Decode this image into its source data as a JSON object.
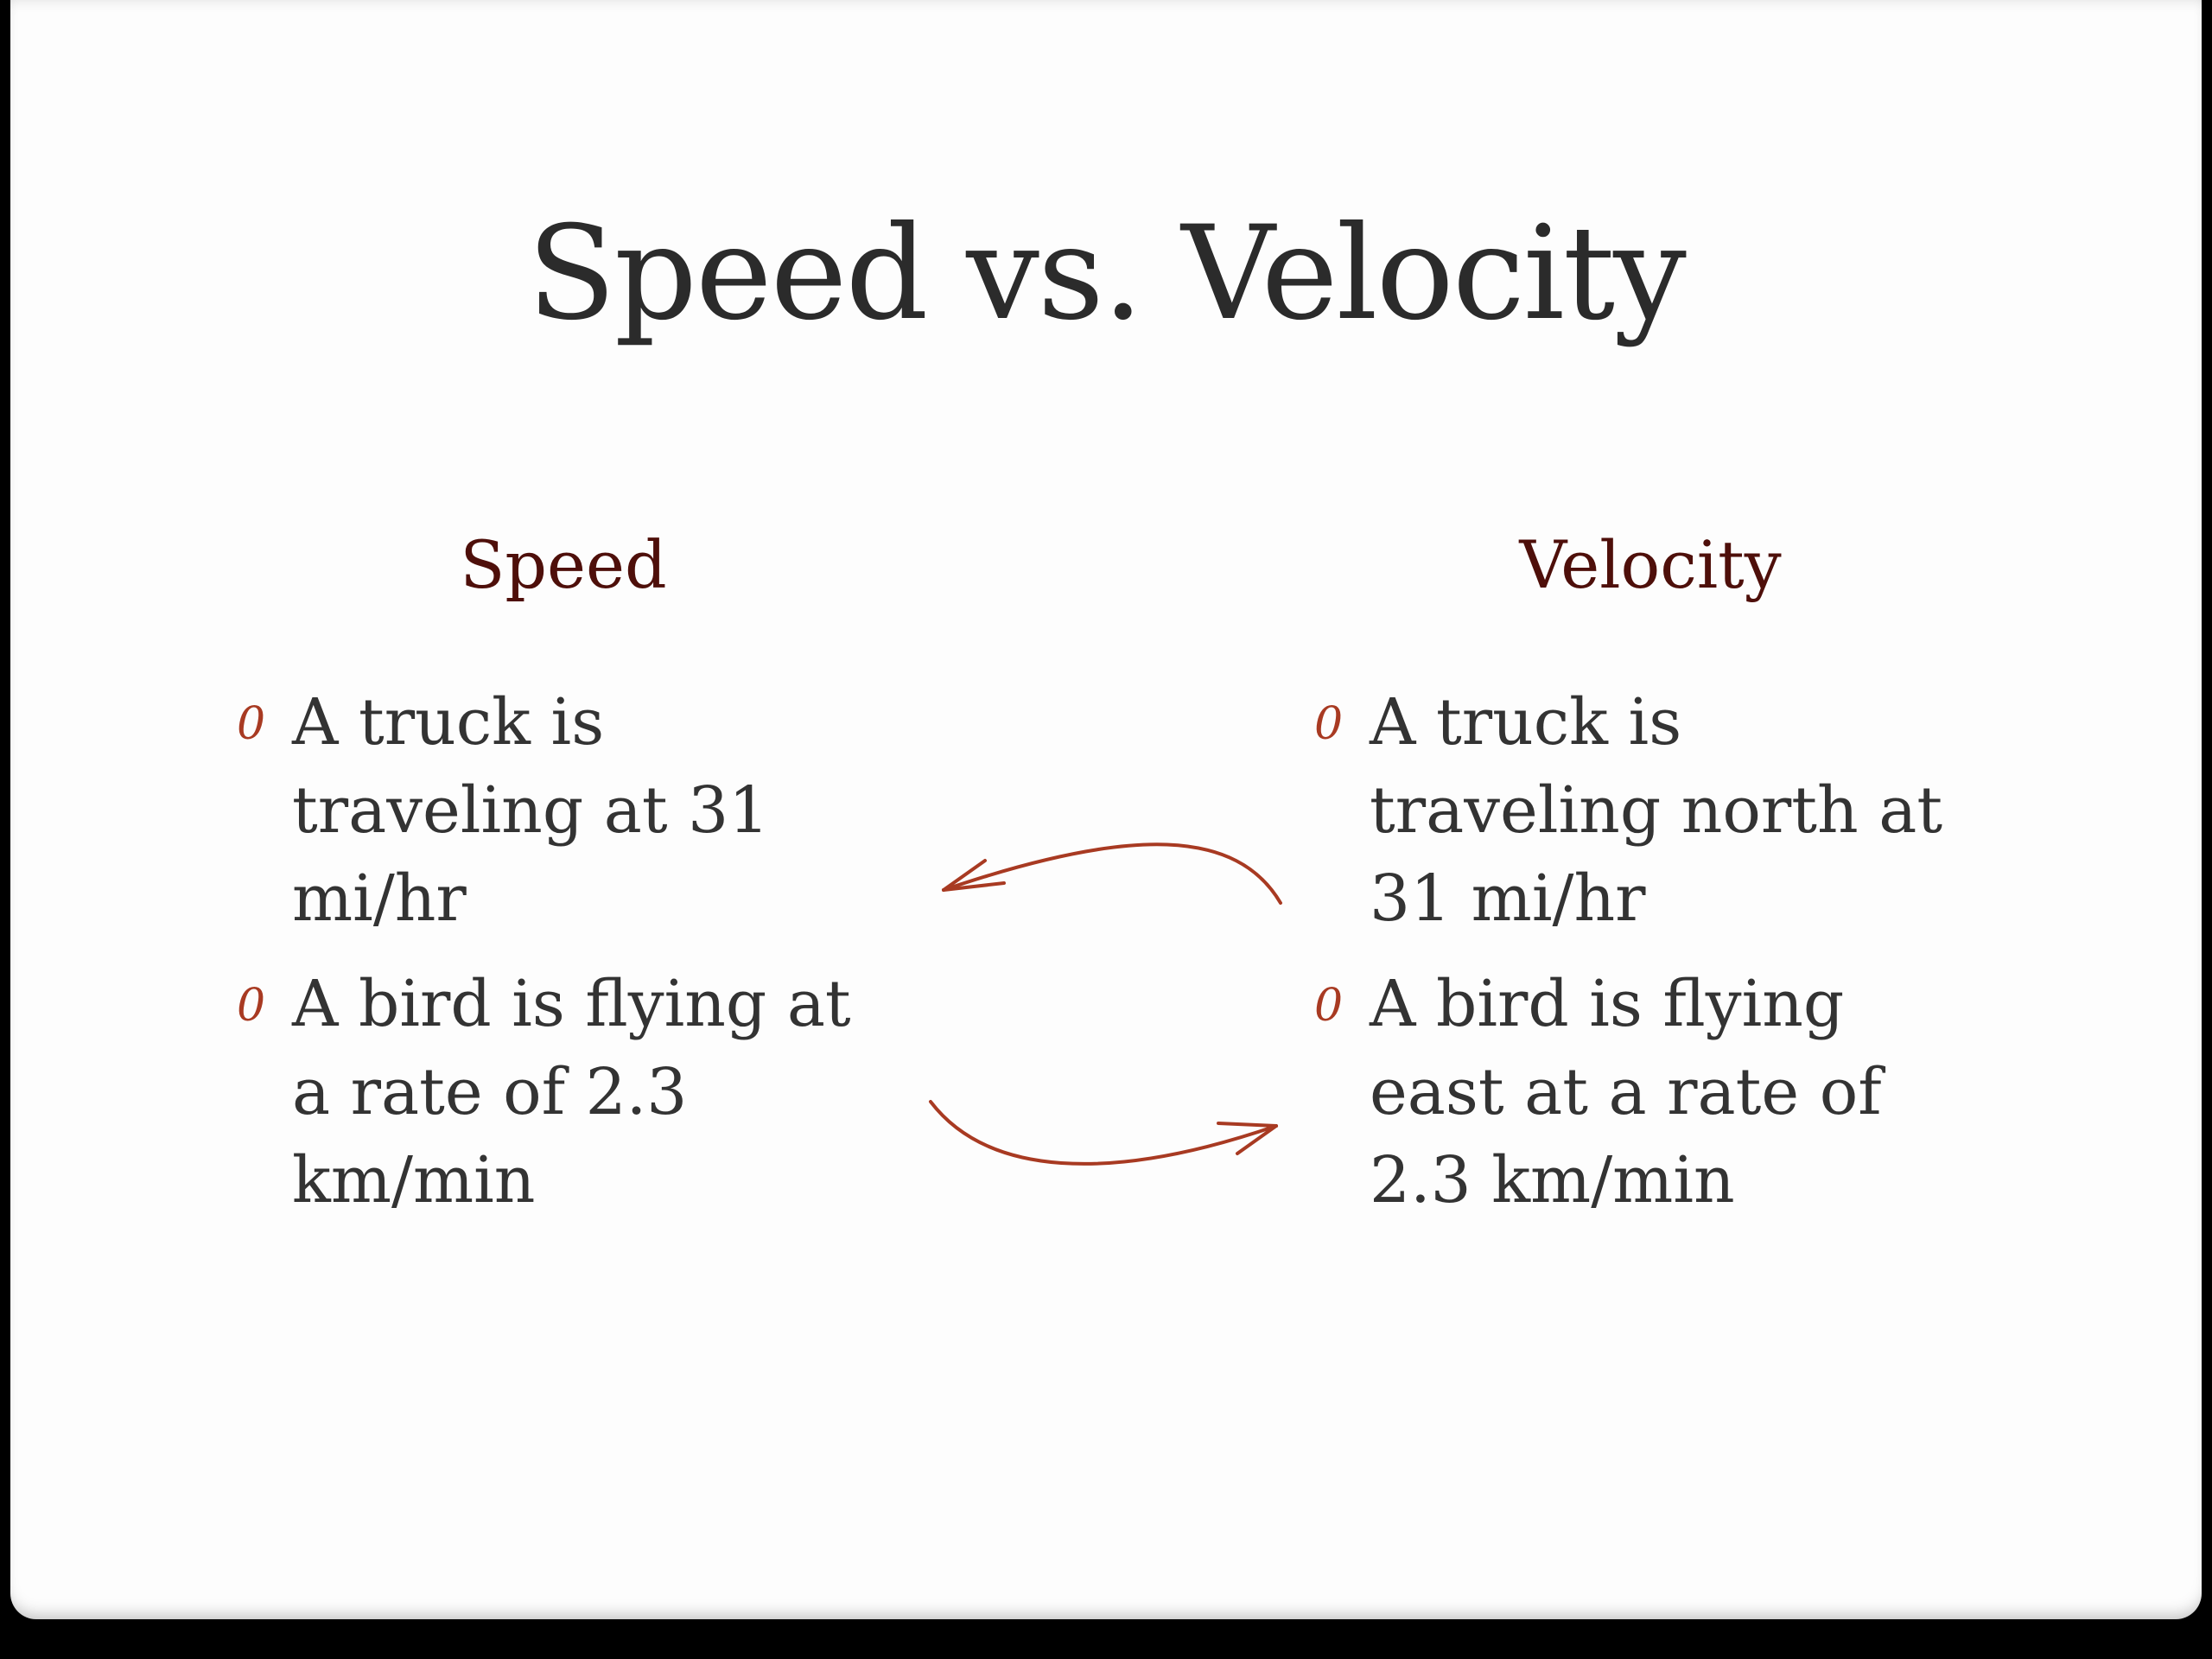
{
  "slide": {
    "title": "Speed vs. Velocity",
    "left_column": {
      "heading": "Speed",
      "bullets": [
        "A truck is traveling at 31 mi/hr",
        "A bird is flying at a rate of 2.3 km/min"
      ]
    },
    "right_column": {
      "heading": "Velocity",
      "bullets": [
        "A truck is traveling north at 31 mi/hr",
        "A bird is flying east at a rate of 2.3 km/min"
      ]
    },
    "bullet_glyph": "0",
    "colors": {
      "heading": "#4e0f0a",
      "accent": "#a83a22",
      "text": "#333333"
    }
  }
}
